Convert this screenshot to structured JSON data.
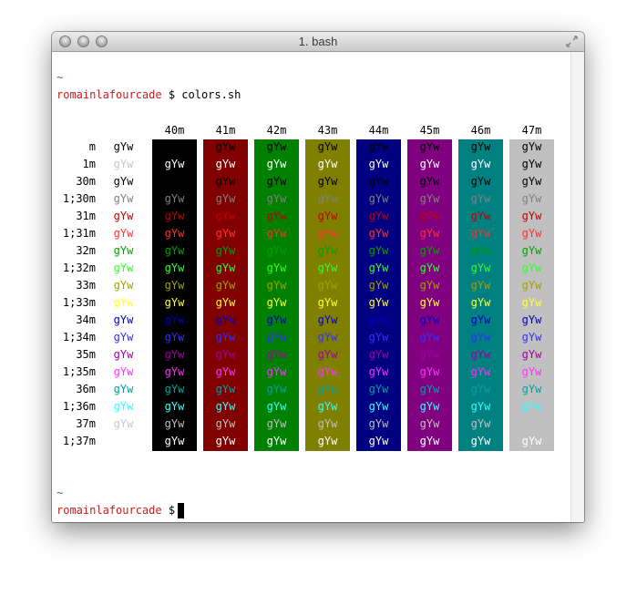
{
  "window": {
    "title": "1. bash"
  },
  "terminal": {
    "tilde": "~",
    "user": "romainlafourcade",
    "prompt_symbol": " $ ",
    "command": "colors.sh",
    "cursor_char": "█"
  },
  "table": {
    "headers": [
      "40m",
      "41m",
      "42m",
      "43m",
      "44m",
      "45m",
      "46m",
      "47m"
    ],
    "rows": [
      "m",
      "1m",
      "30m",
      "1;30m",
      "31m",
      "1;31m",
      "32m",
      "1;32m",
      "33m",
      "1;33m",
      "34m",
      "1;34m",
      "35m",
      "1;35m",
      "36m",
      "1;36m",
      "37m",
      "1;37m"
    ],
    "cell_text": "gYw",
    "backgrounds": [
      "#000000",
      "#800000",
      "#008000",
      "#808000",
      "#000080",
      "#800080",
      "#008080",
      "#c0c0c0"
    ],
    "fg_colors": {
      "m": "#ffffff",
      "1m": "#ffffff",
      "30m": "#000000",
      "1;30m": "#808080",
      "31m": "#c00000",
      "1;31m": "#ff3030",
      "32m": "#00a000",
      "1;32m": "#30ff30",
      "33m": "#a0a000",
      "1;33m": "#ffff30",
      "34m": "#0000c0",
      "1;34m": "#3030ff",
      "35m": "#a000a0",
      "1;35m": "#ff30ff",
      "36m": "#00a0a0",
      "1;36m": "#30ffff",
      "37m": "#c0c0c0",
      "1;37m": "#ffffff"
    },
    "default_column_fg": {
      "m": "#000000",
      "1m": "#c8c8c8",
      "30m": "#000000",
      "1;30m": "#808080",
      "31m": "#c00000",
      "1;31m": "#ff3030",
      "32m": "#00a000",
      "1;32m": "#30ff30",
      "33m": "#a0a000",
      "1;33m": "#ffff30",
      "34m": "#0000c0",
      "1;34m": "#3030ff",
      "35m": "#a000a0",
      "1;35m": "#ff30ff",
      "36m": "#00a0a0",
      "1;36m": "#30ffff",
      "37m": "#c8c8c8",
      "1;37m": "#ffffff"
    }
  }
}
